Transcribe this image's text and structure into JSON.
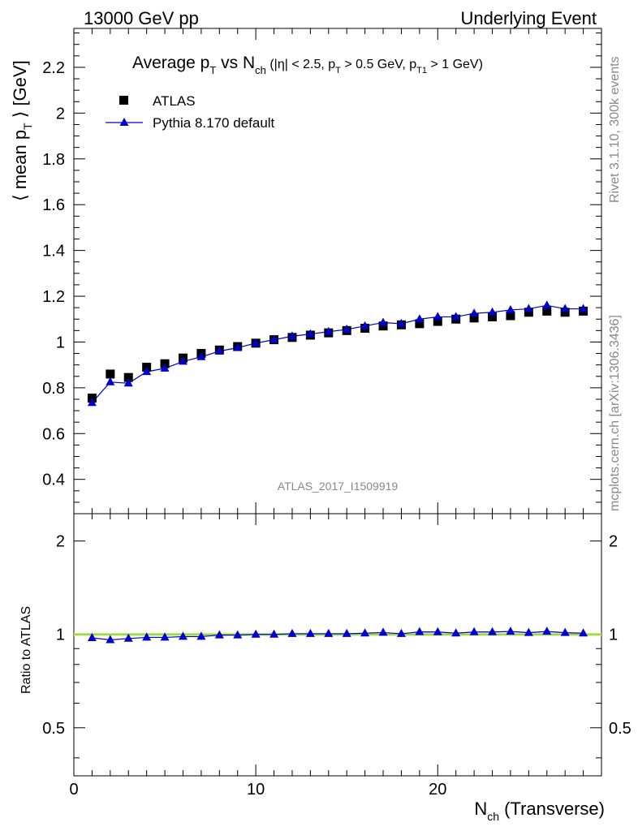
{
  "header": {
    "left": "13000 GeV pp",
    "right": "Underlying Event"
  },
  "side": {
    "rivet": "Rivet 3.1.10,  300k events",
    "mcplots": "mcplots.cern.ch [arXiv:1306.3436]"
  },
  "watermark": "ATLAS_2017_I1509919",
  "chart_data": [
    {
      "type": "scatter",
      "panel": "main",
      "title": "Average p_T vs N_ch (|η| < 2.5, p_T > 0.5 GeV, p_T1 > 1 GeV)",
      "ylabel": "⟨ mean p_T ⟩ [GeV]",
      "xlim": [
        0,
        29
      ],
      "ylim": [
        0.25,
        2.37
      ],
      "yticks": [
        0.4,
        0.6,
        0.8,
        1,
        1.2,
        1.4,
        1.6,
        1.8,
        2,
        2.2
      ],
      "ytick_labels": [
        "0.4",
        "0.6",
        "0.8",
        "1",
        "1.2",
        "1.4",
        "1.6",
        "1.8",
        "2",
        "2.2"
      ],
      "x": [
        1,
        2,
        3,
        4,
        5,
        6,
        7,
        8,
        9,
        10,
        11,
        12,
        13,
        14,
        15,
        16,
        17,
        18,
        19,
        20,
        21,
        22,
        23,
        24,
        25,
        26,
        27,
        28
      ],
      "series": [
        {
          "name": "ATLAS",
          "marker": "square",
          "color": "#000000",
          "values": [
            0.755,
            0.86,
            0.845,
            0.89,
            0.905,
            0.93,
            0.95,
            0.965,
            0.98,
            0.995,
            1.01,
            1.02,
            1.03,
            1.04,
            1.05,
            1.06,
            1.07,
            1.075,
            1.08,
            1.09,
            1.1,
            1.105,
            1.11,
            1.115,
            1.13,
            1.135,
            1.13,
            1.135
          ]
        },
        {
          "name": "Pythia 8.170 default",
          "marker": "triangle",
          "color": "#0000cc",
          "values": [
            0.735,
            0.825,
            0.82,
            0.87,
            0.885,
            0.915,
            0.935,
            0.96,
            0.975,
            0.995,
            1.01,
            1.025,
            1.035,
            1.045,
            1.055,
            1.07,
            1.085,
            1.08,
            1.1,
            1.11,
            1.11,
            1.125,
            1.13,
            1.14,
            1.145,
            1.16,
            1.145,
            1.145
          ]
        }
      ]
    },
    {
      "type": "line",
      "panel": "ratio",
      "ylabel": "Ratio to ATLAS",
      "xlabel": "N_ch (Transverse)",
      "xlim": [
        0,
        29
      ],
      "ylim": [
        0.35,
        2.45
      ],
      "log_y": true,
      "xticks": [
        0,
        10,
        20
      ],
      "xtick_labels": [
        "0",
        "10",
        "20"
      ],
      "yticks": [
        0.5,
        1,
        2
      ],
      "ytick_labels": [
        "0.5",
        "1",
        "2"
      ],
      "x": [
        1,
        2,
        3,
        4,
        5,
        6,
        7,
        8,
        9,
        10,
        11,
        12,
        13,
        14,
        15,
        16,
        17,
        18,
        19,
        20,
        21,
        22,
        23,
        24,
        25,
        26,
        27,
        28
      ],
      "series": [
        {
          "name": "Pythia 8.170 default",
          "color": "#0000cc",
          "values": [
            0.975,
            0.96,
            0.97,
            0.978,
            0.978,
            0.984,
            0.984,
            0.995,
            0.995,
            1.0,
            1.0,
            1.005,
            1.005,
            1.005,
            1.005,
            1.009,
            1.014,
            1.005,
            1.019,
            1.018,
            1.009,
            1.018,
            1.018,
            1.022,
            1.013,
            1.022,
            1.013,
            1.009
          ]
        }
      ],
      "reference": {
        "value": 1,
        "color": "#99cc33"
      }
    }
  ]
}
